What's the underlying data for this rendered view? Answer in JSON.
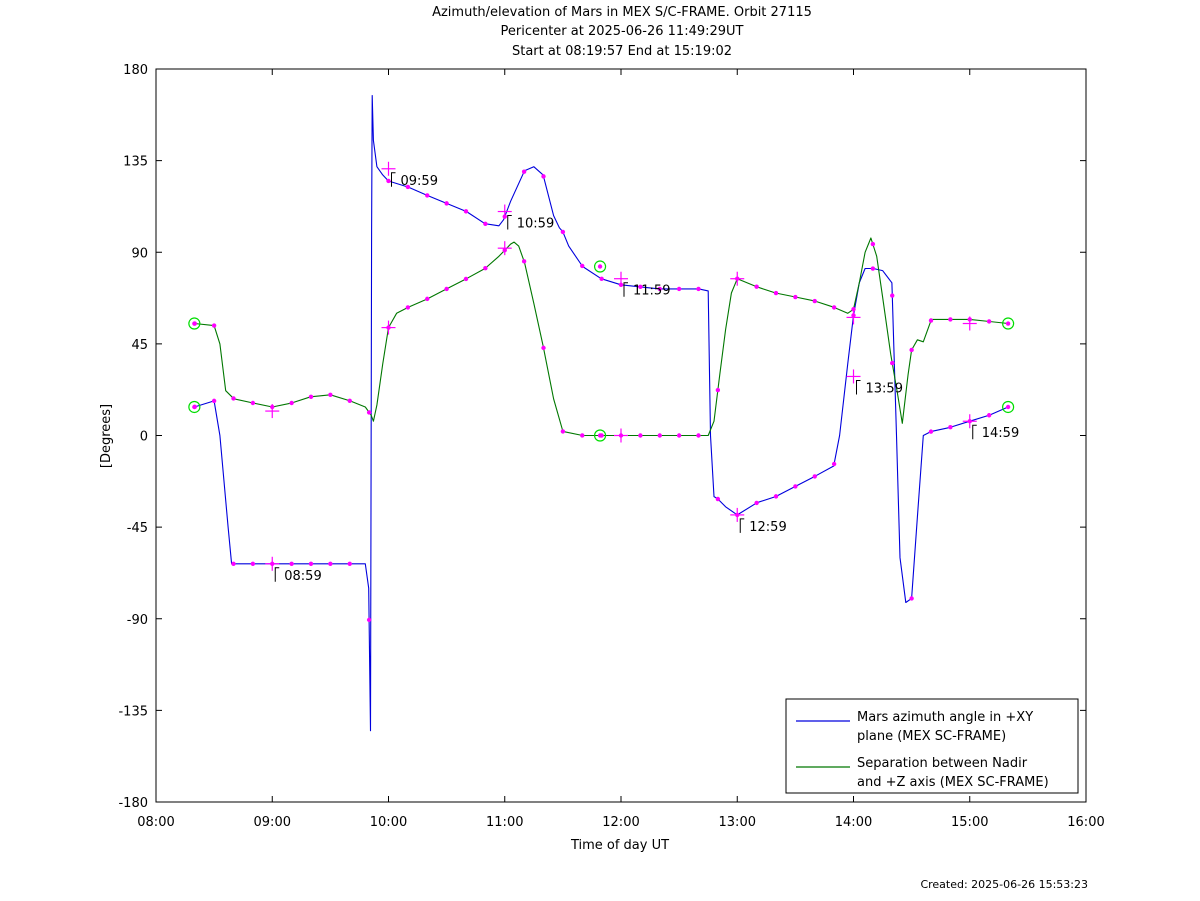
{
  "title_lines": [
    "Azimuth/elevation of Mars in MEX S/C-FRAME.  Orbit 27115",
    "Pericenter at 2025-06-26 11:49:29UT",
    "Start at 08:19:57 End at 15:19:02"
  ],
  "created": "Created: 2025-06-26 15:53:23",
  "chart_data": {
    "type": "line",
    "xlabel": "Time of day UT",
    "ylabel": "[Degrees]",
    "xlim": [
      8.0,
      16.0
    ],
    "ylim": [
      -180,
      180
    ],
    "xticks": [
      8,
      9,
      10,
      11,
      12,
      13,
      14,
      15,
      16
    ],
    "xtick_labels": [
      "08:00",
      "09:00",
      "10:00",
      "11:00",
      "12:00",
      "13:00",
      "14:00",
      "15:00",
      "16:00"
    ],
    "yticks": [
      180,
      135,
      90,
      45,
      0,
      -45,
      -90,
      -135,
      -180
    ],
    "ytick_labels": [
      "180",
      "135",
      "90",
      "45",
      "0",
      "-45",
      "-90",
      "-135",
      "-180"
    ],
    "legend_position": "bottom-right",
    "series": [
      {
        "name": "Mars azimuth angle in +XY plane (MEX SC-FRAME)",
        "legend_lines": [
          "Mars azimuth angle in +XY",
          "plane (MEX SC-FRAME)"
        ],
        "color": "#0000dd",
        "x": [
          8.33,
          8.5,
          8.55,
          8.62,
          8.65,
          8.8,
          9.0,
          9.5,
          9.7,
          9.8,
          9.83,
          9.845,
          9.855,
          9.86,
          9.87,
          9.9,
          9.95,
          10.0,
          10.17,
          10.33,
          10.5,
          10.67,
          10.83,
          10.95,
          10.99,
          11.05,
          11.17,
          11.25,
          11.33,
          11.42,
          11.47,
          11.5,
          11.55,
          11.67,
          11.83,
          12.0,
          12.17,
          12.33,
          12.5,
          12.67,
          12.75,
          12.77,
          12.8,
          12.83,
          12.9,
          13.0,
          13.17,
          13.33,
          13.5,
          13.67,
          13.83,
          13.88,
          13.95,
          14.0,
          14.05,
          14.1,
          14.17,
          14.25,
          14.33,
          14.37,
          14.4,
          14.45,
          14.5,
          14.55,
          14.6,
          14.67,
          14.83,
          15.0,
          15.17,
          15.33
        ],
        "y": [
          14,
          17,
          0,
          -45,
          -63,
          -63,
          -63,
          -63,
          -63,
          -63,
          -75,
          -145,
          100,
          167,
          145,
          132,
          128,
          125,
          122,
          118,
          114,
          110,
          104,
          103,
          106,
          115,
          130,
          132,
          128,
          108,
          102,
          100,
          93,
          83,
          77,
          74,
          73,
          72,
          72,
          72,
          71,
          0,
          -30,
          -31,
          -35,
          -39,
          -33,
          -30,
          -25,
          -20,
          -15,
          0,
          35,
          59,
          75,
          82,
          82,
          81,
          75,
          0,
          -60,
          -82,
          -80,
          -40,
          0,
          2,
          4,
          7,
          10,
          14
        ]
      },
      {
        "name": "Separation between Nadir and +Z axis (MEX SC-FRAME)",
        "legend_lines": [
          "Separation between Nadir",
          "and +Z axis (MEX SC-FRAME)"
        ],
        "color": "#007700",
        "x": [
          8.33,
          8.5,
          8.55,
          8.6,
          8.67,
          8.83,
          9.0,
          9.17,
          9.33,
          9.5,
          9.67,
          9.8,
          9.85,
          9.87,
          9.9,
          9.95,
          10.0,
          10.07,
          10.17,
          10.33,
          10.5,
          10.67,
          10.83,
          10.95,
          11.0,
          11.05,
          11.08,
          11.12,
          11.17,
          11.25,
          11.33,
          11.42,
          11.5,
          11.67,
          11.83,
          12.0,
          12.17,
          12.33,
          12.5,
          12.67,
          12.75,
          12.8,
          12.85,
          12.9,
          12.95,
          13.0,
          13.17,
          13.33,
          13.5,
          13.67,
          13.83,
          13.95,
          14.0,
          14.05,
          14.1,
          14.15,
          14.2,
          14.25,
          14.32,
          14.38,
          14.42,
          14.47,
          14.5,
          14.55,
          14.6,
          14.67,
          14.83,
          15.0,
          15.17,
          15.33
        ],
        "y": [
          55,
          54,
          45,
          22,
          18,
          16,
          14,
          16,
          19,
          20,
          17,
          14,
          10,
          7,
          15,
          35,
          53,
          60,
          63,
          67,
          72,
          77,
          82,
          88,
          91,
          94,
          95,
          93,
          85,
          65,
          44,
          18,
          2,
          0,
          0,
          0,
          0,
          0,
          0,
          0,
          0,
          7,
          30,
          52,
          70,
          77,
          73,
          70,
          68,
          66,
          63,
          60,
          62,
          75,
          90,
          97,
          88,
          68,
          40,
          20,
          6,
          30,
          42,
          47,
          46,
          57,
          57,
          57,
          56,
          55
        ]
      }
    ],
    "markers": [
      {
        "series": 0,
        "x": 8.33,
        "y": 14,
        "kind": "circle"
      },
      {
        "series": 1,
        "x": 8.33,
        "y": 55,
        "kind": "circle"
      },
      {
        "series": 0,
        "x": 15.33,
        "y": 14,
        "kind": "circle"
      },
      {
        "series": 1,
        "x": 15.33,
        "y": 55,
        "kind": "circle"
      },
      {
        "series": 1,
        "x": 11.82,
        "y": 0,
        "kind": "circle"
      },
      {
        "series": 0,
        "x": 11.82,
        "y": 83,
        "kind": "circle"
      },
      {
        "series": 0,
        "x": 9.0,
        "y": -63,
        "kind": "plus"
      },
      {
        "series": 1,
        "x": 9.0,
        "y": 12,
        "kind": "plus"
      },
      {
        "series": 0,
        "x": 10.0,
        "y": 131,
        "kind": "plus"
      },
      {
        "series": 1,
        "x": 10.0,
        "y": 53,
        "kind": "plus"
      },
      {
        "series": 0,
        "x": 11.0,
        "y": 110,
        "kind": "plus"
      },
      {
        "series": 1,
        "x": 11.0,
        "y": 92,
        "kind": "plus"
      },
      {
        "series": 0,
        "x": 12.0,
        "y": 77,
        "kind": "plus"
      },
      {
        "series": 1,
        "x": 12.0,
        "y": 0,
        "kind": "plus"
      },
      {
        "series": 0,
        "x": 13.0,
        "y": -39,
        "kind": "plus"
      },
      {
        "series": 1,
        "x": 13.0,
        "y": 77,
        "kind": "plus"
      },
      {
        "series": 0,
        "x": 14.0,
        "y": 29,
        "kind": "plus"
      },
      {
        "series": 1,
        "x": 14.0,
        "y": 58,
        "kind": "plus"
      },
      {
        "series": 0,
        "x": 15.0,
        "y": 7,
        "kind": "plus"
      },
      {
        "series": 1,
        "x": 15.0,
        "y": 55,
        "kind": "plus"
      }
    ],
    "annotations": [
      {
        "text": "08:59",
        "x": 9.0,
        "y": -63
      },
      {
        "text": "09:59",
        "x": 10.0,
        "y": 131
      },
      {
        "text": "10:59",
        "x": 11.0,
        "y": 110
      },
      {
        "text": "11:59",
        "x": 12.0,
        "y": 77
      },
      {
        "text": "12:59",
        "x": 13.0,
        "y": -39
      },
      {
        "text": "13:59",
        "x": 14.0,
        "y": 29
      },
      {
        "text": "14:59",
        "x": 15.0,
        "y": 7
      }
    ]
  }
}
